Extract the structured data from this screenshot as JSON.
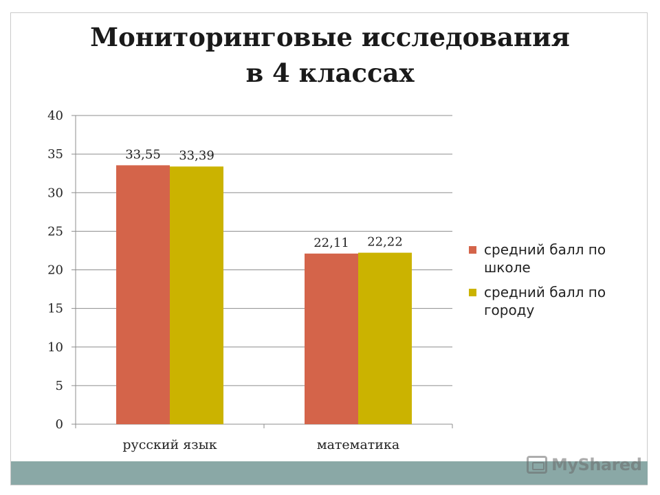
{
  "slide": {
    "title_lines": [
      "Мониторинговые исследования",
      "в 4 классах"
    ]
  },
  "chart_data": {
    "type": "bar",
    "title": "Мониторинговые исследования в 4 классах",
    "categories": [
      "русский язык",
      "математика"
    ],
    "series": [
      {
        "name": "средний балл по школе",
        "values": [
          33.55,
          22.11
        ],
        "labels": [
          "33,55",
          "22,11"
        ],
        "color": "#d4644a"
      },
      {
        "name": "средний балл по городу",
        "values": [
          33.39,
          22.22
        ],
        "labels": [
          "33,39",
          "22,22"
        ],
        "color": "#cbb300"
      }
    ],
    "ylim": [
      0,
      40
    ],
    "yticks": [
      0,
      5,
      10,
      15,
      20,
      25,
      30,
      35,
      40
    ],
    "grid": true,
    "legend_position": "right"
  },
  "legend": {
    "items": [
      {
        "label": "средний балл по школе",
        "color": "#d4644a"
      },
      {
        "label": "средний балл по городу",
        "color": "#cbb300"
      }
    ]
  },
  "watermark": {
    "text": "MyShared",
    "icon": "presentation-icon"
  }
}
